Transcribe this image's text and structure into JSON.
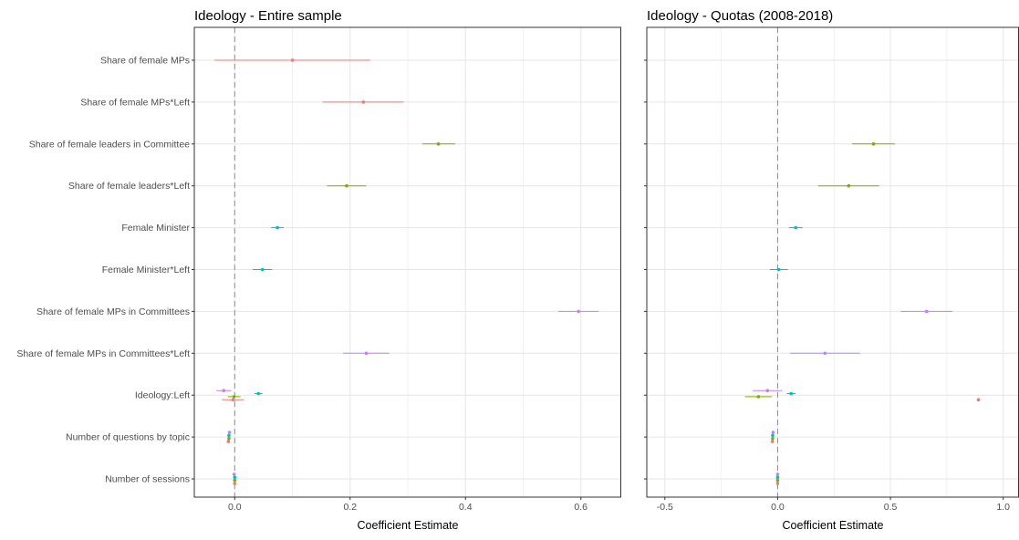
{
  "chart_data": {
    "type": "scatter",
    "subtype": "coefficient-plot-with-error-bars",
    "xlabel": "Coefficient Estimate",
    "categories": [
      "Share of female MPs",
      "Share of female MPs*Left",
      "Share of female leaders in Committee",
      "Share of female leaders*Left",
      "Female Minister",
      "Female Minister*Left",
      "Share of female MPs in Committees",
      "Share of female MPs in Committees*Left",
      "Ideology:Left",
      "Number of questions by topic",
      "Number of sessions"
    ],
    "colors": {
      "red": "#F8766D",
      "olive": "#7CAE00",
      "teal": "#00BFC4",
      "purple": "#C77CFF"
    },
    "grid": true,
    "panels": [
      {
        "title": "Ideology - Entire sample",
        "xlim": [
          -0.07,
          0.67
        ],
        "xticks": [
          0.0,
          0.2,
          0.4,
          0.6
        ],
        "xtick_labels": [
          "0.0",
          "0.2",
          "0.4",
          "0.6"
        ],
        "points": [
          {
            "row": 0,
            "offset": 0,
            "est": 0.1,
            "lo": -0.035,
            "hi": 0.235,
            "color": "#F8766D"
          },
          {
            "row": 1,
            "offset": 0,
            "est": 0.223,
            "lo": 0.152,
            "hi": 0.293,
            "color": "#F8766D"
          },
          {
            "row": 2,
            "offset": 0,
            "est": 0.353,
            "lo": 0.325,
            "hi": 0.382,
            "color": "#7CAE00"
          },
          {
            "row": 3,
            "offset": 0,
            "est": 0.194,
            "lo": 0.16,
            "hi": 0.228,
            "color": "#7CAE00"
          },
          {
            "row": 4,
            "offset": 0,
            "est": 0.074,
            "lo": 0.063,
            "hi": 0.085,
            "color": "#00BFC4"
          },
          {
            "row": 5,
            "offset": 0,
            "est": 0.048,
            "lo": 0.031,
            "hi": 0.065,
            "color": "#00BFC4"
          },
          {
            "row": 6,
            "offset": 0,
            "est": 0.596,
            "lo": 0.561,
            "hi": 0.631,
            "color": "#C77CFF"
          },
          {
            "row": 7,
            "offset": 0,
            "est": 0.228,
            "lo": 0.188,
            "hi": 0.268,
            "color": "#C77CFF"
          },
          {
            "row": 8,
            "offset": -0.3,
            "est": -0.019,
            "lo": -0.032,
            "hi": -0.006,
            "color": "#C77CFF"
          },
          {
            "row": 8,
            "offset": -0.1,
            "est": 0.041,
            "lo": 0.034,
            "hi": 0.048,
            "color": "#00BFC4"
          },
          {
            "row": 8,
            "offset": 0.1,
            "est": -0.001,
            "lo": -0.012,
            "hi": 0.01,
            "color": "#7CAE00"
          },
          {
            "row": 8,
            "offset": 0.3,
            "est": -0.003,
            "lo": -0.022,
            "hi": 0.016,
            "color": "#F8766D"
          },
          {
            "row": 9,
            "offset": -0.3,
            "est": -0.009,
            "lo": -0.009,
            "hi": -0.009,
            "color": "#C77CFF"
          },
          {
            "row": 9,
            "offset": -0.1,
            "est": -0.01,
            "lo": -0.01,
            "hi": -0.01,
            "color": "#00BFC4"
          },
          {
            "row": 9,
            "offset": 0.1,
            "est": -0.01,
            "lo": -0.01,
            "hi": -0.01,
            "color": "#7CAE00"
          },
          {
            "row": 9,
            "offset": 0.3,
            "est": -0.011,
            "lo": -0.011,
            "hi": -0.011,
            "color": "#F8766D"
          },
          {
            "row": 10,
            "offset": -0.3,
            "est": -0.001,
            "lo": -0.001,
            "hi": -0.001,
            "color": "#C77CFF"
          },
          {
            "row": 10,
            "offset": -0.1,
            "est": 0.0,
            "lo": 0.0,
            "hi": 0.0,
            "color": "#00BFC4"
          },
          {
            "row": 10,
            "offset": 0.1,
            "est": 0.0,
            "lo": 0.0,
            "hi": 0.0,
            "color": "#7CAE00"
          },
          {
            "row": 10,
            "offset": 0.3,
            "est": 0.0,
            "lo": 0.0,
            "hi": 0.0,
            "color": "#F8766D"
          }
        ]
      },
      {
        "title": "Ideology - Quotas (2008-2018)",
        "xlim": [
          -0.58,
          1.07
        ],
        "xticks": [
          -0.5,
          0.0,
          0.5,
          1.0
        ],
        "xtick_labels": [
          "-0.5",
          "0.0",
          "0.5",
          "1.0"
        ],
        "points": [
          {
            "row": 2,
            "offset": 0,
            "est": 0.425,
            "lo": 0.33,
            "hi": 0.52,
            "color": "#7CAE00"
          },
          {
            "row": 3,
            "offset": 0,
            "est": 0.315,
            "lo": 0.18,
            "hi": 0.45,
            "color": "#7CAE00"
          },
          {
            "row": 4,
            "offset": 0,
            "est": 0.08,
            "lo": 0.05,
            "hi": 0.11,
            "color": "#00BFC4"
          },
          {
            "row": 5,
            "offset": 0,
            "est": 0.005,
            "lo": -0.035,
            "hi": 0.045,
            "color": "#00BFC4"
          },
          {
            "row": 6,
            "offset": 0,
            "est": 0.66,
            "lo": 0.545,
            "hi": 0.775,
            "color": "#C77CFF"
          },
          {
            "row": 7,
            "offset": 0,
            "est": 0.21,
            "lo": 0.055,
            "hi": 0.365,
            "color": "#C77CFF"
          },
          {
            "row": 8,
            "offset": -0.3,
            "est": -0.045,
            "lo": -0.11,
            "hi": 0.02,
            "color": "#C77CFF"
          },
          {
            "row": 8,
            "offset": -0.1,
            "est": 0.06,
            "lo": 0.04,
            "hi": 0.08,
            "color": "#00BFC4"
          },
          {
            "row": 8,
            "offset": 0.1,
            "est": -0.085,
            "lo": -0.145,
            "hi": -0.025,
            "color": "#7CAE00"
          },
          {
            "row": 8,
            "offset": 0.3,
            "est": 0.89,
            "lo": 0.89,
            "hi": 0.89,
            "color": "#F8766D"
          },
          {
            "row": 9,
            "offset": -0.3,
            "est": -0.02,
            "lo": -0.02,
            "hi": -0.02,
            "color": "#C77CFF"
          },
          {
            "row": 9,
            "offset": -0.1,
            "est": -0.022,
            "lo": -0.022,
            "hi": -0.022,
            "color": "#00BFC4"
          },
          {
            "row": 9,
            "offset": 0.1,
            "est": -0.022,
            "lo": -0.022,
            "hi": -0.022,
            "color": "#7CAE00"
          },
          {
            "row": 9,
            "offset": 0.3,
            "est": -0.023,
            "lo": -0.023,
            "hi": -0.023,
            "color": "#F8766D"
          },
          {
            "row": 10,
            "offset": -0.3,
            "est": 0.0,
            "lo": 0.0,
            "hi": 0.0,
            "color": "#C77CFF"
          },
          {
            "row": 10,
            "offset": -0.1,
            "est": 0.0,
            "lo": 0.0,
            "hi": 0.0,
            "color": "#00BFC4"
          },
          {
            "row": 10,
            "offset": 0.1,
            "est": 0.0,
            "lo": 0.0,
            "hi": 0.0,
            "color": "#7CAE00"
          },
          {
            "row": 10,
            "offset": 0.3,
            "est": 0.0,
            "lo": 0.0,
            "hi": 0.0,
            "color": "#F8766D"
          }
        ]
      }
    ]
  }
}
